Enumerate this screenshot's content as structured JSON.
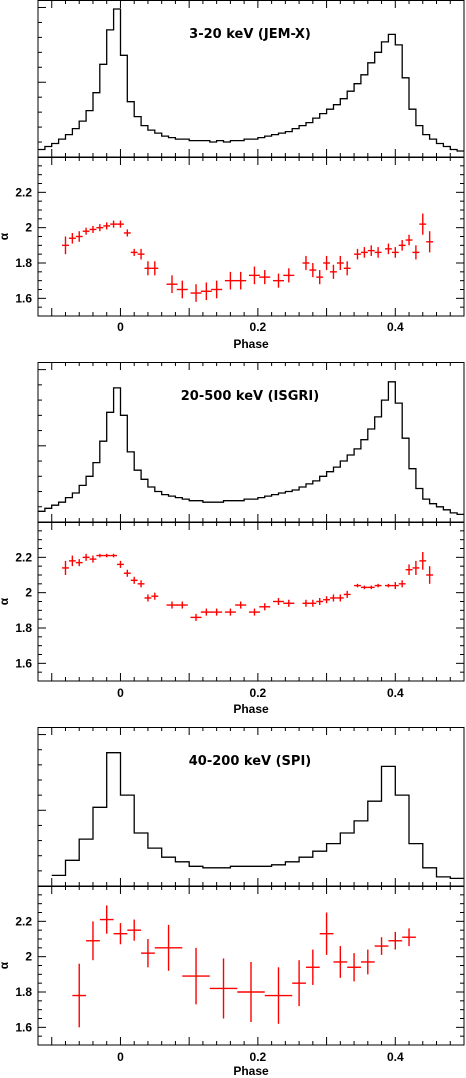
{
  "chart_data": [
    {
      "type": "line",
      "title": "3-20 keV (JEM-X)",
      "xlabel": "",
      "ylabel": "",
      "xlim": [
        -0.12,
        0.5
      ],
      "ylim": [
        0,
        1.05
      ],
      "xticks": [
        -0.1,
        0,
        0.1,
        0.2,
        0.3,
        0.4,
        0.5
      ],
      "series": [
        {
          "x": [
            -0.12,
            -0.11,
            -0.1,
            -0.09,
            -0.08,
            -0.07,
            -0.06,
            -0.05,
            -0.04,
            -0.03,
            -0.02,
            -0.01,
            0.0,
            0.01,
            0.02,
            0.03,
            0.04,
            0.05,
            0.06,
            0.07,
            0.08,
            0.09,
            0.1,
            0.11,
            0.12,
            0.13,
            0.14,
            0.15,
            0.16,
            0.17,
            0.18,
            0.19,
            0.2,
            0.21,
            0.22,
            0.23,
            0.24,
            0.25,
            0.26,
            0.27,
            0.28,
            0.29,
            0.3,
            0.31,
            0.32,
            0.33,
            0.34,
            0.35,
            0.36,
            0.37,
            0.38,
            0.39,
            0.4,
            0.41,
            0.42,
            0.43,
            0.44,
            0.45,
            0.46,
            0.47,
            0.48,
            0.49
          ],
          "values": [
            0.05,
            0.07,
            0.09,
            0.12,
            0.15,
            0.19,
            0.24,
            0.31,
            0.43,
            0.62,
            0.85,
            0.99,
            0.68,
            0.37,
            0.27,
            0.21,
            0.18,
            0.16,
            0.14,
            0.13,
            0.12,
            0.12,
            0.11,
            0.11,
            0.11,
            0.1,
            0.11,
            0.1,
            0.11,
            0.11,
            0.12,
            0.12,
            0.13,
            0.14,
            0.15,
            0.16,
            0.17,
            0.19,
            0.21,
            0.23,
            0.26,
            0.29,
            0.32,
            0.35,
            0.39,
            0.44,
            0.49,
            0.55,
            0.63,
            0.7,
            0.77,
            0.82,
            0.75,
            0.53,
            0.32,
            0.21,
            0.15,
            0.12,
            0.09,
            0.07,
            0.05,
            0.04
          ]
        }
      ]
    },
    {
      "type": "scatter",
      "title": "",
      "xlabel": "Phase",
      "ylabel": "α",
      "xlim": [
        -0.12,
        0.5
      ],
      "ylim": [
        1.5,
        2.4
      ],
      "xticks": [
        0,
        0.2,
        0.4
      ],
      "xtick_labels": [
        "0",
        "0.2",
        "0.4"
      ],
      "yticks": [
        1.6,
        1.8,
        2.0,
        2.2
      ],
      "ytick_labels": [
        "1.6",
        "1.8",
        "2",
        "2.2"
      ],
      "series": [
        {
          "color": "#ff0000",
          "x": [
            -0.08,
            -0.07,
            -0.06,
            -0.05,
            -0.04,
            -0.03,
            -0.02,
            -0.01,
            0.0,
            0.01,
            0.02,
            0.03,
            0.04,
            0.05,
            0.075,
            0.09,
            0.11,
            0.125,
            0.14,
            0.16,
            0.175,
            0.195,
            0.21,
            0.23,
            0.245,
            0.27,
            0.28,
            0.29,
            0.3,
            0.31,
            0.32,
            0.33,
            0.345,
            0.355,
            0.365,
            0.375,
            0.39,
            0.4,
            0.41,
            0.42,
            0.43,
            0.44,
            0.45
          ],
          "values": [
            1.9,
            1.94,
            1.95,
            1.98,
            1.99,
            2.0,
            2.01,
            2.02,
            2.02,
            1.97,
            1.86,
            1.85,
            1.77,
            1.77,
            1.68,
            1.65,
            1.63,
            1.64,
            1.65,
            1.7,
            1.7,
            1.73,
            1.72,
            1.7,
            1.73,
            1.8,
            1.76,
            1.72,
            1.8,
            1.75,
            1.8,
            1.77,
            1.85,
            1.86,
            1.87,
            1.86,
            1.88,
            1.86,
            1.9,
            1.93,
            1.86,
            2.02,
            1.92
          ],
          "xerr": [
            0.005,
            0.005,
            0.005,
            0.005,
            0.005,
            0.005,
            0.005,
            0.005,
            0.005,
            0.005,
            0.005,
            0.005,
            0.005,
            0.005,
            0.008,
            0.008,
            0.008,
            0.008,
            0.008,
            0.008,
            0.008,
            0.008,
            0.008,
            0.008,
            0.008,
            0.005,
            0.005,
            0.005,
            0.005,
            0.005,
            0.005,
            0.005,
            0.005,
            0.005,
            0.005,
            0.005,
            0.005,
            0.005,
            0.005,
            0.005,
            0.005,
            0.005,
            0.005
          ],
          "yerr": [
            0.05,
            0.03,
            0.03,
            0.02,
            0.02,
            0.02,
            0.02,
            0.02,
            0.02,
            0.02,
            0.02,
            0.03,
            0.04,
            0.04,
            0.05,
            0.05,
            0.05,
            0.05,
            0.05,
            0.05,
            0.05,
            0.05,
            0.04,
            0.04,
            0.04,
            0.04,
            0.04,
            0.04,
            0.04,
            0.04,
            0.04,
            0.04,
            0.03,
            0.03,
            0.03,
            0.03,
            0.03,
            0.03,
            0.03,
            0.03,
            0.04,
            0.06,
            0.06
          ]
        }
      ]
    },
    {
      "type": "line",
      "title": "20-500 keV (ISGRI)",
      "xlabel": "",
      "ylabel": "",
      "xlim": [
        -0.12,
        0.5
      ],
      "ylim": [
        0,
        1.05
      ],
      "xticks": [
        -0.1,
        0,
        0.1,
        0.2,
        0.3,
        0.4,
        0.5
      ],
      "series": [
        {
          "x": [
            -0.12,
            -0.11,
            -0.1,
            -0.09,
            -0.08,
            -0.07,
            -0.06,
            -0.05,
            -0.04,
            -0.03,
            -0.02,
            -0.01,
            0.0,
            0.01,
            0.02,
            0.03,
            0.04,
            0.05,
            0.06,
            0.07,
            0.08,
            0.09,
            0.1,
            0.11,
            0.12,
            0.13,
            0.14,
            0.15,
            0.16,
            0.17,
            0.18,
            0.19,
            0.2,
            0.21,
            0.22,
            0.23,
            0.24,
            0.25,
            0.26,
            0.27,
            0.28,
            0.29,
            0.3,
            0.31,
            0.32,
            0.33,
            0.34,
            0.35,
            0.36,
            0.37,
            0.38,
            0.39,
            0.4,
            0.41,
            0.42,
            0.43,
            0.44,
            0.45,
            0.46,
            0.47,
            0.48,
            0.49
          ],
          "values": [
            0.07,
            0.09,
            0.11,
            0.13,
            0.16,
            0.19,
            0.24,
            0.3,
            0.39,
            0.53,
            0.72,
            0.88,
            0.7,
            0.46,
            0.34,
            0.28,
            0.23,
            0.2,
            0.18,
            0.17,
            0.16,
            0.15,
            0.14,
            0.14,
            0.13,
            0.13,
            0.13,
            0.14,
            0.14,
            0.14,
            0.15,
            0.15,
            0.16,
            0.17,
            0.18,
            0.19,
            0.2,
            0.21,
            0.23,
            0.25,
            0.27,
            0.3,
            0.33,
            0.36,
            0.4,
            0.44,
            0.48,
            0.54,
            0.61,
            0.69,
            0.8,
            0.92,
            0.78,
            0.55,
            0.35,
            0.22,
            0.15,
            0.12,
            0.1,
            0.08,
            0.06,
            0.05
          ]
        }
      ]
    },
    {
      "type": "scatter",
      "title": "",
      "xlabel": "Phase",
      "ylabel": "α",
      "xlim": [
        -0.12,
        0.5
      ],
      "ylim": [
        1.5,
        2.4
      ],
      "xticks": [
        0,
        0.2,
        0.4
      ],
      "xtick_labels": [
        "0",
        "0.2",
        "0.4"
      ],
      "yticks": [
        1.6,
        1.8,
        2.0,
        2.2
      ],
      "ytick_labels": [
        "1.6",
        "1.8",
        "2",
        "2.2"
      ],
      "series": [
        {
          "color": "#ff0000",
          "x": [
            -0.08,
            -0.07,
            -0.06,
            -0.05,
            -0.04,
            -0.03,
            -0.02,
            -0.01,
            0.0,
            0.01,
            0.02,
            0.03,
            0.04,
            0.05,
            0.075,
            0.09,
            0.11,
            0.125,
            0.14,
            0.16,
            0.175,
            0.195,
            0.21,
            0.23,
            0.245,
            0.27,
            0.28,
            0.29,
            0.3,
            0.31,
            0.32,
            0.33,
            0.345,
            0.355,
            0.365,
            0.375,
            0.39,
            0.4,
            0.41,
            0.42,
            0.43,
            0.44,
            0.45
          ],
          "values": [
            2.14,
            2.18,
            2.17,
            2.2,
            2.19,
            2.21,
            2.21,
            2.21,
            2.16,
            2.11,
            2.07,
            2.05,
            1.97,
            1.98,
            1.93,
            1.93,
            1.86,
            1.89,
            1.89,
            1.89,
            1.93,
            1.89,
            1.92,
            1.95,
            1.94,
            1.94,
            1.94,
            1.95,
            1.96,
            1.97,
            1.97,
            1.99,
            2.04,
            2.03,
            2.03,
            2.04,
            2.04,
            2.04,
            2.05,
            2.13,
            2.14,
            2.18,
            2.1
          ],
          "xerr": [
            0.005,
            0.005,
            0.005,
            0.005,
            0.005,
            0.005,
            0.005,
            0.005,
            0.005,
            0.005,
            0.005,
            0.005,
            0.005,
            0.005,
            0.008,
            0.008,
            0.008,
            0.008,
            0.008,
            0.008,
            0.008,
            0.008,
            0.008,
            0.008,
            0.008,
            0.005,
            0.005,
            0.005,
            0.005,
            0.005,
            0.005,
            0.005,
            0.005,
            0.005,
            0.005,
            0.005,
            0.005,
            0.005,
            0.005,
            0.005,
            0.005,
            0.005,
            0.005
          ],
          "yerr": [
            0.04,
            0.03,
            0.02,
            0.02,
            0.02,
            0.01,
            0.01,
            0.01,
            0.02,
            0.02,
            0.02,
            0.02,
            0.02,
            0.02,
            0.02,
            0.02,
            0.02,
            0.02,
            0.02,
            0.02,
            0.02,
            0.02,
            0.02,
            0.02,
            0.02,
            0.02,
            0.02,
            0.02,
            0.02,
            0.02,
            0.02,
            0.02,
            0.01,
            0.01,
            0.01,
            0.01,
            0.01,
            0.02,
            0.02,
            0.03,
            0.04,
            0.05,
            0.05
          ]
        }
      ]
    },
    {
      "type": "line",
      "title": "40-200 keV (SPI)",
      "xlabel": "",
      "ylabel": "",
      "xlim": [
        -0.12,
        0.5
      ],
      "ylim": [
        0,
        1.05
      ],
      "xticks": [
        -0.1,
        0,
        0.1,
        0.2,
        0.3,
        0.4,
        0.5
      ],
      "series": [
        {
          "x": [
            -0.1,
            -0.08,
            -0.06,
            -0.04,
            -0.02,
            0.0,
            0.02,
            0.04,
            0.06,
            0.08,
            0.1,
            0.12,
            0.14,
            0.16,
            0.18,
            0.2,
            0.22,
            0.24,
            0.26,
            0.28,
            0.3,
            0.32,
            0.34,
            0.36,
            0.38,
            0.4,
            0.42,
            0.44,
            0.46,
            0.48
          ],
          "values": [
            0.07,
            0.17,
            0.31,
            0.52,
            0.88,
            0.6,
            0.35,
            0.25,
            0.19,
            0.16,
            0.13,
            0.12,
            0.12,
            0.13,
            0.13,
            0.13,
            0.14,
            0.16,
            0.19,
            0.23,
            0.28,
            0.35,
            0.43,
            0.56,
            0.79,
            0.6,
            0.28,
            0.12,
            0.06,
            0.05
          ]
        }
      ]
    },
    {
      "type": "scatter",
      "title": "",
      "xlabel": "Phase",
      "ylabel": "α",
      "xlim": [
        -0.12,
        0.5
      ],
      "ylim": [
        1.5,
        2.4
      ],
      "xticks": [
        0,
        0.2,
        0.4
      ],
      "xtick_labels": [
        "0",
        "0.2",
        "0.4"
      ],
      "yticks": [
        1.6,
        1.8,
        2.0,
        2.2
      ],
      "ytick_labels": [
        "1.6",
        "1.8",
        "2",
        "2.2"
      ],
      "series": [
        {
          "color": "#ff0000",
          "x": [
            -0.06,
            -0.04,
            -0.02,
            0.0,
            0.02,
            0.04,
            0.07,
            0.11,
            0.15,
            0.19,
            0.23,
            0.26,
            0.28,
            0.3,
            0.32,
            0.34,
            0.36,
            0.38,
            0.4,
            0.42
          ],
          "values": [
            1.78,
            2.09,
            2.21,
            2.13,
            2.15,
            2.02,
            2.05,
            1.89,
            1.82,
            1.8,
            1.78,
            1.85,
            1.94,
            2.13,
            1.97,
            1.94,
            1.97,
            2.06,
            2.09,
            2.11
          ],
          "xerr": [
            0.01,
            0.01,
            0.01,
            0.01,
            0.01,
            0.01,
            0.02,
            0.02,
            0.02,
            0.02,
            0.02,
            0.01,
            0.01,
            0.01,
            0.01,
            0.01,
            0.01,
            0.01,
            0.01,
            0.01
          ],
          "yerr": [
            0.18,
            0.11,
            0.08,
            0.06,
            0.06,
            0.08,
            0.13,
            0.16,
            0.17,
            0.17,
            0.16,
            0.13,
            0.1,
            0.12,
            0.09,
            0.08,
            0.07,
            0.05,
            0.05,
            0.05
          ]
        }
      ]
    }
  ]
}
